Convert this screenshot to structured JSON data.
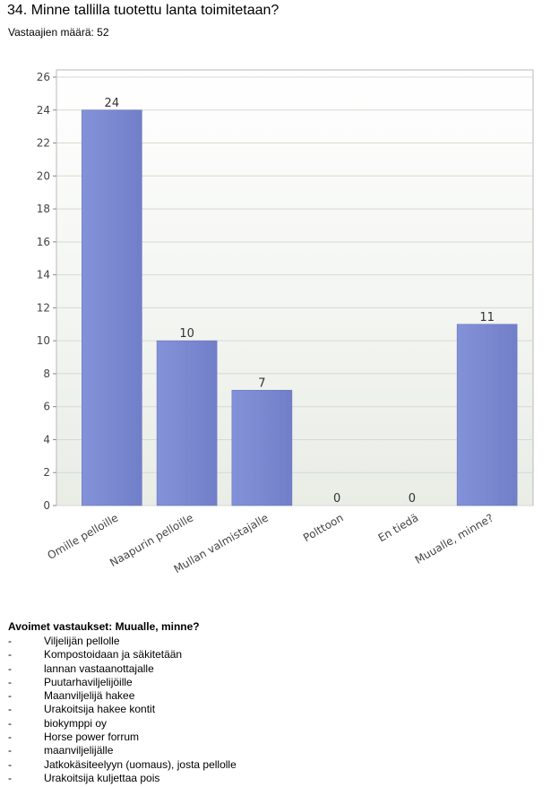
{
  "header": {
    "title": "34. Minne tallilla tuotettu lanta toimitetaan?",
    "respondents": "Vastaajien määrä: 52"
  },
  "chart_data": {
    "type": "bar",
    "categories": [
      "Omille pelloille",
      "Naapurin pelloille",
      "Mullan valmistajalle",
      "Polttoon",
      "En tiedä",
      "Muualle, minne?"
    ],
    "values": [
      24,
      10,
      7,
      0,
      0,
      11
    ],
    "title": "",
    "xlabel": "",
    "ylabel": "",
    "ylim": [
      0,
      26
    ],
    "yticks": [
      0,
      2,
      4,
      6,
      8,
      10,
      12,
      14,
      16,
      18,
      20,
      22,
      24,
      26
    ],
    "grid": true,
    "bar_color": "#7a89d1"
  },
  "open_answers": {
    "title": "Avoimet vastaukset: Muualle, minne?",
    "bullet": "-",
    "items": [
      "Viljelijän pellolle",
      "Kompostoidaan ja säkitetään",
      "lannan vastaanottajalle",
      "Puutarhaviljelijöille",
      "Maanviljelijä hakee",
      "Urakoitsija hakee kontit",
      "biokymppi oy",
      "Horse power forrum",
      "maanviljelijälle",
      "Jatkokäsiteelyyn (uomaus), josta pellolle",
      "Urakoitsija kuljettaa pois"
    ]
  }
}
